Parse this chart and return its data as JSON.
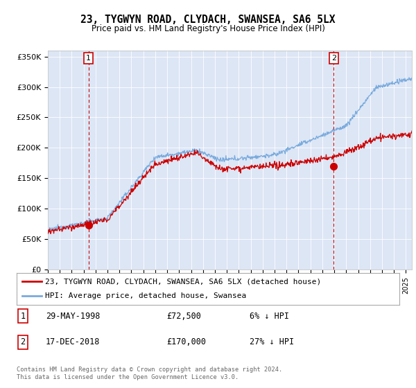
{
  "title": "23, TYGWYN ROAD, CLYDACH, SWANSEA, SA6 5LX",
  "subtitle": "Price paid vs. HM Land Registry's House Price Index (HPI)",
  "plot_bg_color": "#dce6f5",
  "ylabel_ticks": [
    "£0",
    "£50K",
    "£100K",
    "£150K",
    "£200K",
    "£250K",
    "£300K",
    "£350K"
  ],
  "ytick_vals": [
    0,
    50000,
    100000,
    150000,
    200000,
    250000,
    300000,
    350000
  ],
  "ylim": [
    0,
    360000
  ],
  "xlim_start": 1995.0,
  "xlim_end": 2025.5,
  "transaction1": {
    "date_x": 1998.41,
    "price": 72500
  },
  "transaction2": {
    "date_x": 2018.96,
    "price": 170000
  },
  "legend_entries": [
    "23, TYGWYN ROAD, CLYDACH, SWANSEA, SA6 5LX (detached house)",
    "HPI: Average price, detached house, Swansea"
  ],
  "info_rows": [
    {
      "num": "1",
      "date": "29-MAY-1998",
      "price": "£72,500",
      "pct": "6% ↓ HPI"
    },
    {
      "num": "2",
      "date": "17-DEC-2018",
      "price": "£170,000",
      "pct": "27% ↓ HPI"
    }
  ],
  "footnote": "Contains HM Land Registry data © Crown copyright and database right 2024.\nThis data is licensed under the Open Government Licence v3.0.",
  "red_color": "#cc0000",
  "blue_color": "#7aaadd"
}
